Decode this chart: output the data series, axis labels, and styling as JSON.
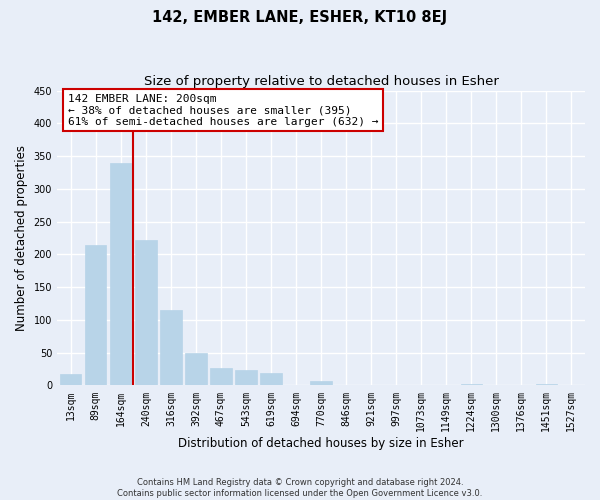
{
  "title": "142, EMBER LANE, ESHER, KT10 8EJ",
  "subtitle": "Size of property relative to detached houses in Esher",
  "xlabel": "Distribution of detached houses by size in Esher",
  "ylabel": "Number of detached properties",
  "bar_labels": [
    "13sqm",
    "89sqm",
    "164sqm",
    "240sqm",
    "316sqm",
    "392sqm",
    "467sqm",
    "543sqm",
    "619sqm",
    "694sqm",
    "770sqm",
    "846sqm",
    "921sqm",
    "997sqm",
    "1073sqm",
    "1149sqm",
    "1224sqm",
    "1300sqm",
    "1376sqm",
    "1451sqm",
    "1527sqm"
  ],
  "bar_values": [
    18,
    215,
    340,
    222,
    115,
    50,
    26,
    24,
    19,
    0,
    7,
    0,
    0,
    0,
    0,
    0,
    2,
    0,
    0,
    2,
    1
  ],
  "bar_color": "#b8d4e8",
  "vline_index": 2,
  "vline_color": "#cc0000",
  "annotation_line1": "142 EMBER LANE: 200sqm",
  "annotation_line2": "← 38% of detached houses are smaller (395)",
  "annotation_line3": "61% of semi-detached houses are larger (632) →",
  "ylim": [
    0,
    450
  ],
  "yticks": [
    0,
    50,
    100,
    150,
    200,
    250,
    300,
    350,
    400,
    450
  ],
  "footnote": "Contains HM Land Registry data © Crown copyright and database right 2024.\nContains public sector information licensed under the Open Government Licence v3.0.",
  "background_color": "#e8eef8",
  "plot_background_color": "#e8eef8",
  "grid_color": "#ffffff",
  "title_fontsize": 10.5,
  "subtitle_fontsize": 9.5,
  "axis_label_fontsize": 8.5,
  "tick_fontsize": 7,
  "annotation_fontsize": 8,
  "footnote_fontsize": 6
}
